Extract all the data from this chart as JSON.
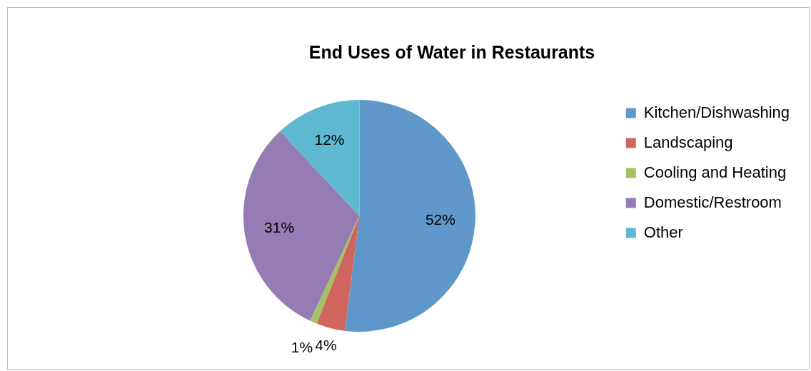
{
  "chart_data": {
    "type": "pie",
    "title": "End Uses of Water in Restaurants",
    "categories": [
      "Kitchen/Dishwashing",
      "Landscaping",
      "Cooling and Heating",
      "Domestic/Restroom",
      "Other"
    ],
    "values": [
      52,
      4,
      1,
      31,
      12
    ],
    "colors": [
      "#6097ca",
      "#d0655f",
      "#a4c262",
      "#957cb3",
      "#5db8d0"
    ],
    "value_labels": [
      "52%",
      "4%",
      "1%",
      "31%",
      "12%"
    ],
    "legend": "right"
  }
}
